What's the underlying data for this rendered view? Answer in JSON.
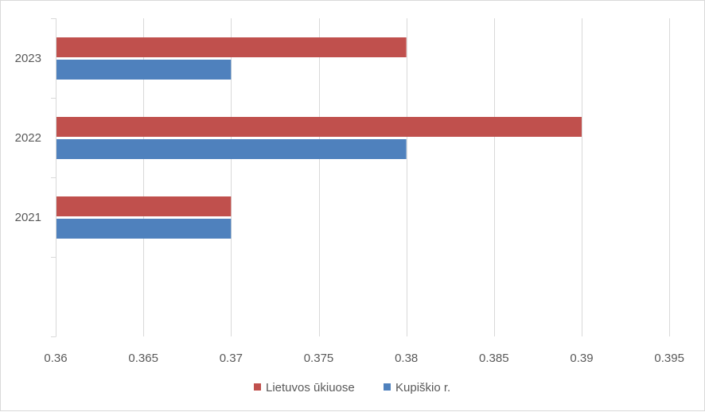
{
  "chart_data": {
    "type": "bar",
    "orientation": "horizontal",
    "categories": [
      "2021",
      "2022",
      "2023"
    ],
    "series": [
      {
        "name": "Lietuvos ūkiuose",
        "color": "#C0504D",
        "values": [
          0.37,
          0.39,
          0.38
        ]
      },
      {
        "name": "Kupiškio r.",
        "color": "#4F81BD",
        "values": [
          0.37,
          0.38,
          0.37
        ]
      }
    ],
    "xlim": [
      0.36,
      0.395
    ],
    "xticks": [
      "0.36",
      "0.365",
      "0.37",
      "0.375",
      "0.38",
      "0.385",
      "0.39",
      "0.395"
    ],
    "xtick_values": [
      0.36,
      0.365,
      0.37,
      0.375,
      0.38,
      0.385,
      0.39,
      0.395
    ],
    "grid": true,
    "legend_position": "bottom",
    "title": "",
    "xlabel": "",
    "ylabel": ""
  }
}
